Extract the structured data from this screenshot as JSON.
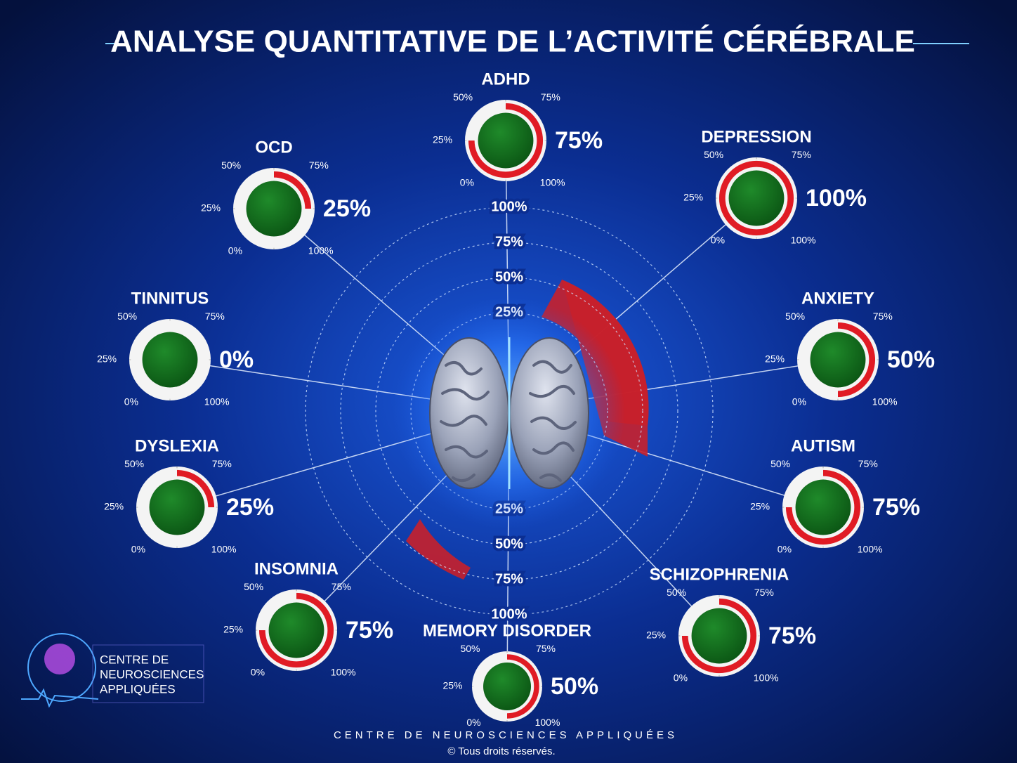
{
  "title": "ANALYSE QUANTITATIVE DE L’ACTIVITÉ CÉRÉBRALE",
  "logo_text": [
    "CENTRE DE",
    "NEUROSCIENCES",
    "APPLIQUÉES"
  ],
  "footer": {
    "org": "CENTRE DE NEUROSCIENCES APPLIQUÉES",
    "rights": "© Tous droits réservés."
  },
  "chart_data": [
    {
      "type": "radial",
      "ylim": [
        0,
        100
      ],
      "yticks": [
        {
          "value": 25,
          "label": "25%"
        },
        {
          "value": 50,
          "label": "50%"
        },
        {
          "value": 75,
          "label": "75%"
        },
        {
          "value": 100,
          "label": "100%"
        }
      ]
    },
    {
      "type": "gauge",
      "title": "ADHD",
      "values": [
        75
      ],
      "value_labels": [
        "75%"
      ],
      "color": "#e01b24",
      "ylim": [
        0,
        100
      ],
      "yticks": [
        {
          "value": 0,
          "label": "0%"
        },
        {
          "value": 25,
          "label": "25%"
        },
        {
          "value": 50,
          "label": "50%"
        },
        {
          "value": 75,
          "label": "75%"
        },
        {
          "value": 100,
          "label": "100%"
        }
      ]
    },
    {
      "type": "gauge",
      "title": "OCD",
      "values": [
        25
      ],
      "value_labels": [
        "25%"
      ],
      "color": "#e01b24",
      "ylim": [
        0,
        100
      ],
      "yticks": [
        {
          "value": 0,
          "label": "0%"
        },
        {
          "value": 25,
          "label": "25%"
        },
        {
          "value": 50,
          "label": "50%"
        },
        {
          "value": 75,
          "label": "75%"
        },
        {
          "value": 100,
          "label": "100%"
        }
      ]
    },
    {
      "type": "gauge",
      "title": "DEPRESSION",
      "values": [
        100
      ],
      "value_labels": [
        "100%"
      ],
      "color": "#e01b24",
      "ylim": [
        0,
        100
      ],
      "yticks": [
        {
          "value": 0,
          "label": "0%"
        },
        {
          "value": 25,
          "label": "25%"
        },
        {
          "value": 50,
          "label": "50%"
        },
        {
          "value": 75,
          "label": "75%"
        },
        {
          "value": 100,
          "label": "100%"
        }
      ]
    },
    {
      "type": "gauge",
      "title": "TINNITUS",
      "values": [
        0
      ],
      "value_labels": [
        "0%"
      ],
      "color": "#ffffff",
      "ylim": [
        0,
        100
      ],
      "yticks": [
        {
          "value": 0,
          "label": "0%"
        },
        {
          "value": 25,
          "label": "25%"
        },
        {
          "value": 50,
          "label": "50%"
        },
        {
          "value": 75,
          "label": "75%"
        },
        {
          "value": 100,
          "label": "100%"
        }
      ]
    },
    {
      "type": "gauge",
      "title": "ANXIETY",
      "values": [
        50
      ],
      "value_labels": [
        "50%"
      ],
      "color": "#e01b24",
      "ylim": [
        0,
        100
      ],
      "yticks": [
        {
          "value": 0,
          "label": "0%"
        },
        {
          "value": 25,
          "label": "25%"
        },
        {
          "value": 50,
          "label": "50%"
        },
        {
          "value": 75,
          "label": "75%"
        },
        {
          "value": 100,
          "label": "100%"
        }
      ]
    },
    {
      "type": "gauge",
      "title": "DYSLEXIA",
      "values": [
        25
      ],
      "value_labels": [
        "25%"
      ],
      "color": "#e01b24",
      "ylim": [
        0,
        100
      ],
      "yticks": [
        {
          "value": 0,
          "label": "0%"
        },
        {
          "value": 25,
          "label": "25%"
        },
        {
          "value": 50,
          "label": "50%"
        },
        {
          "value": 75,
          "label": "75%"
        },
        {
          "value": 100,
          "label": "100%"
        }
      ]
    },
    {
      "type": "gauge",
      "title": "AUTISM",
      "values": [
        75
      ],
      "value_labels": [
        "75%"
      ],
      "color": "#e01b24",
      "ylim": [
        0,
        100
      ],
      "yticks": [
        {
          "value": 0,
          "label": "0%"
        },
        {
          "value": 25,
          "label": "25%"
        },
        {
          "value": 50,
          "label": "50%"
        },
        {
          "value": 75,
          "label": "75%"
        },
        {
          "value": 100,
          "label": "100%"
        }
      ]
    },
    {
      "type": "gauge",
      "title": "INSOMNIA",
      "values": [
        75
      ],
      "value_labels": [
        "75%"
      ],
      "color": "#e01b24",
      "ylim": [
        0,
        100
      ],
      "yticks": [
        {
          "value": 0,
          "label": "0%"
        },
        {
          "value": 25,
          "label": "25%"
        },
        {
          "value": 50,
          "label": "50%"
        },
        {
          "value": 75,
          "label": "75%"
        },
        {
          "value": 100,
          "label": "100%"
        }
      ]
    },
    {
      "type": "gauge",
      "title": "SCHIZOPHRENIA",
      "values": [
        75
      ],
      "value_labels": [
        "75%"
      ],
      "color": "#e01b24",
      "ylim": [
        0,
        100
      ],
      "yticks": [
        {
          "value": 0,
          "label": "0%"
        },
        {
          "value": 25,
          "label": "25%"
        },
        {
          "value": 50,
          "label": "50%"
        },
        {
          "value": 75,
          "label": "75%"
        },
        {
          "value": 100,
          "label": "100%"
        }
      ]
    },
    {
      "type": "gauge",
      "title": "MEMORY DISORDER",
      "values": [
        50
      ],
      "value_labels": [
        "50%"
      ],
      "color": "#e01b24",
      "ylim": [
        0,
        100
      ],
      "yticks": [
        {
          "value": 0,
          "label": "0%"
        },
        {
          "value": 25,
          "label": "25%"
        },
        {
          "value": 50,
          "label": "50%"
        },
        {
          "value": 75,
          "label": "75%"
        },
        {
          "value": 100,
          "label": "100%"
        }
      ]
    }
  ]
}
